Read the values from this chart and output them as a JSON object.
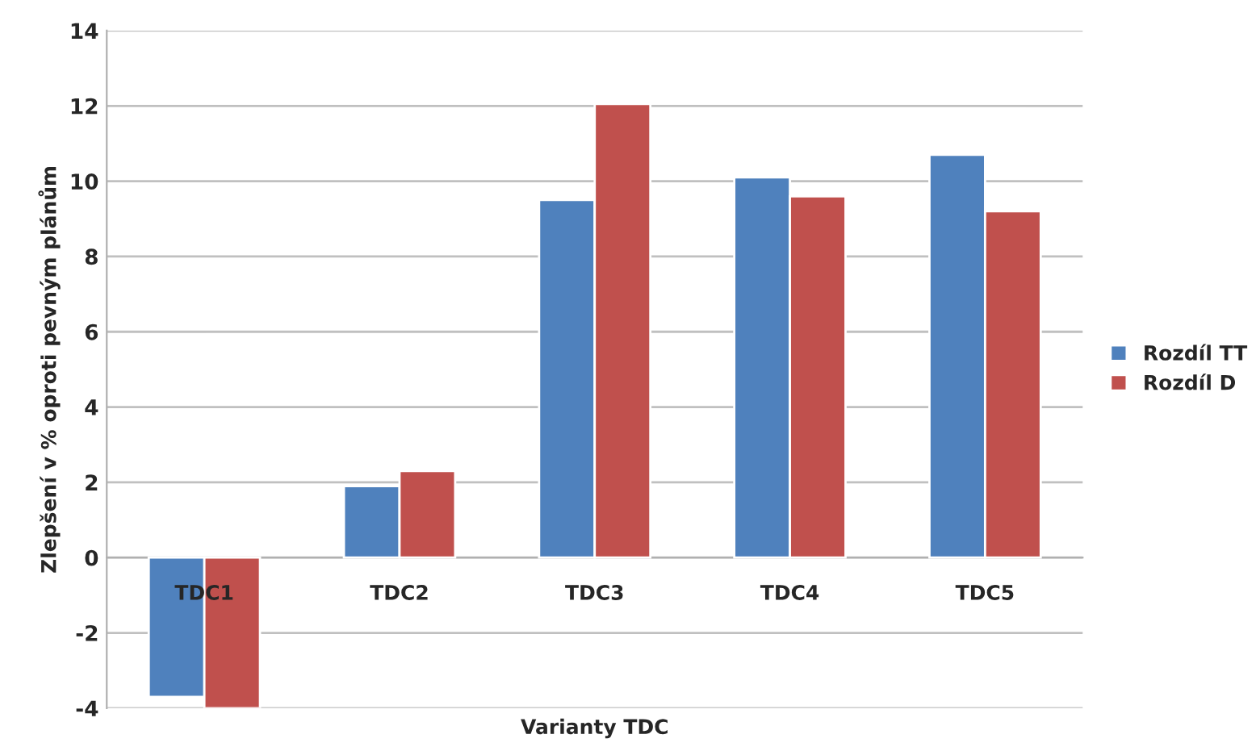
{
  "chart_data": {
    "type": "bar",
    "xlabel": "Varianty TDC",
    "ylabel": "Zlepšení v % oproti pevným plánům",
    "categories": [
      "TDC1",
      "TDC2",
      "TDC3",
      "TDC4",
      "TDC5"
    ],
    "series": [
      {
        "name": "Rozdíl TT",
        "color": "#4f81bd",
        "values": [
          -3.7,
          1.9,
          9.5,
          10.1,
          10.7
        ]
      },
      {
        "name": "Rozdíl D",
        "color": "#c0504d",
        "values": [
          -4.0,
          2.3,
          12.05,
          9.6,
          9.2
        ]
      }
    ],
    "ylim": [
      -4,
      14
    ],
    "yticks": [
      -4,
      -2,
      0,
      2,
      4,
      6,
      8,
      10,
      12,
      14
    ],
    "grid": "y",
    "legend": "right"
  }
}
